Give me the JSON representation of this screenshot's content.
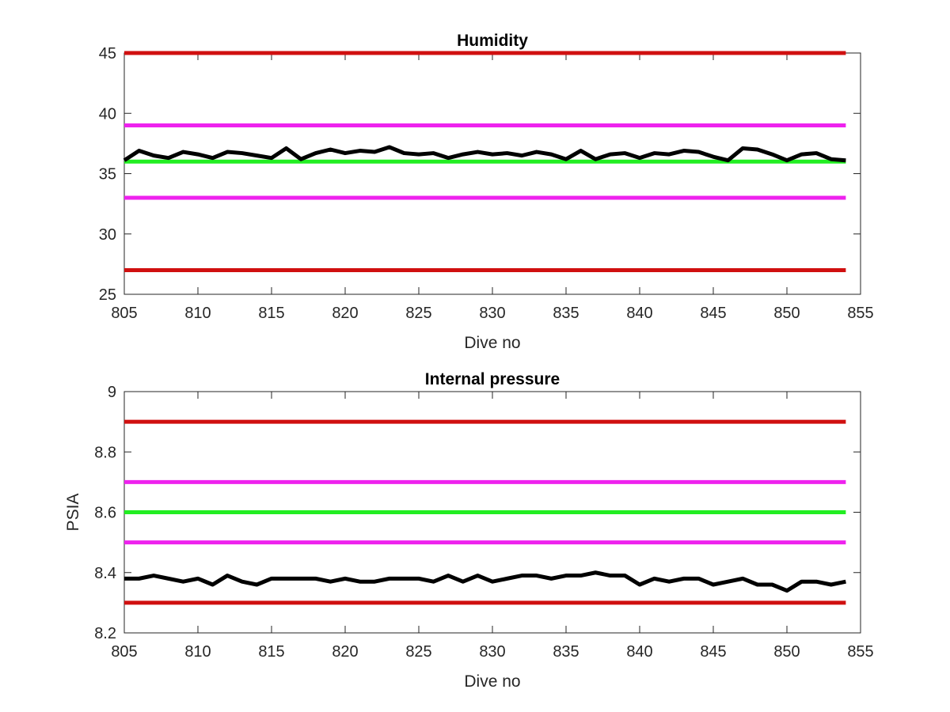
{
  "chart_data": [
    {
      "type": "line",
      "title": "Humidity",
      "xlabel": "Dive no",
      "ylabel": "",
      "xlim": [
        805,
        855
      ],
      "ylim": [
        25,
        45
      ],
      "xticks": [
        "805",
        "810",
        "815",
        "820",
        "825",
        "830",
        "835",
        "840",
        "845",
        "850",
        "855"
      ],
      "yticks": [
        "25",
        "30",
        "35",
        "40",
        "45"
      ],
      "grid": false,
      "reference_lines": [
        {
          "y": 45,
          "color": "#d01010"
        },
        {
          "y": 39,
          "color": "#ee22ee"
        },
        {
          "y": 36,
          "color": "#22ee22"
        },
        {
          "y": 33,
          "color": "#ee22ee"
        },
        {
          "y": 27,
          "color": "#d01010"
        }
      ],
      "series": [
        {
          "color": "#000000",
          "x": [
            805,
            806,
            807,
            808,
            809,
            810,
            811,
            812,
            813,
            814,
            815,
            816,
            817,
            818,
            819,
            820,
            821,
            822,
            823,
            824,
            825,
            826,
            827,
            828,
            829,
            830,
            831,
            832,
            833,
            834,
            835,
            836,
            837,
            838,
            839,
            840,
            841,
            842,
            843,
            844,
            845,
            846,
            847,
            848,
            849,
            850,
            851,
            852,
            853,
            854
          ],
          "y": [
            36.1,
            36.9,
            36.5,
            36.3,
            36.8,
            36.6,
            36.3,
            36.8,
            36.7,
            36.5,
            36.3,
            37.1,
            36.2,
            36.7,
            37.0,
            36.7,
            36.9,
            36.8,
            37.2,
            36.7,
            36.6,
            36.7,
            36.3,
            36.6,
            36.8,
            36.6,
            36.7,
            36.5,
            36.8,
            36.6,
            36.2,
            36.9,
            36.2,
            36.6,
            36.7,
            36.3,
            36.7,
            36.6,
            36.9,
            36.8,
            36.4,
            36.1,
            37.1,
            37.0,
            36.6,
            36.1,
            36.6,
            36.7,
            36.2,
            36.1
          ]
        }
      ]
    },
    {
      "type": "line",
      "title": "Internal pressure",
      "xlabel": "Dive no",
      "ylabel": "PSIA",
      "xlim": [
        805,
        855
      ],
      "ylim": [
        8.2,
        9
      ],
      "xticks": [
        "805",
        "810",
        "815",
        "820",
        "825",
        "830",
        "835",
        "840",
        "845",
        "850",
        "855"
      ],
      "yticks": [
        "8.2",
        "8.4",
        "8.6",
        "8.8",
        "9"
      ],
      "grid": false,
      "reference_lines": [
        {
          "y": 8.9,
          "color": "#d01010"
        },
        {
          "y": 8.7,
          "color": "#ee22ee"
        },
        {
          "y": 8.6,
          "color": "#22ee22"
        },
        {
          "y": 8.5,
          "color": "#ee22ee"
        },
        {
          "y": 8.3,
          "color": "#d01010"
        }
      ],
      "series": [
        {
          "color": "#000000",
          "x": [
            805,
            806,
            807,
            808,
            809,
            810,
            811,
            812,
            813,
            814,
            815,
            816,
            817,
            818,
            819,
            820,
            821,
            822,
            823,
            824,
            825,
            826,
            827,
            828,
            829,
            830,
            831,
            832,
            833,
            834,
            835,
            836,
            837,
            838,
            839,
            840,
            841,
            842,
            843,
            844,
            845,
            846,
            847,
            848,
            849,
            850,
            851,
            852,
            853,
            854
          ],
          "y": [
            8.38,
            8.38,
            8.39,
            8.38,
            8.37,
            8.38,
            8.36,
            8.39,
            8.37,
            8.36,
            8.38,
            8.38,
            8.38,
            8.38,
            8.37,
            8.38,
            8.37,
            8.37,
            8.38,
            8.38,
            8.38,
            8.37,
            8.39,
            8.37,
            8.39,
            8.37,
            8.38,
            8.39,
            8.39,
            8.38,
            8.39,
            8.39,
            8.4,
            8.39,
            8.39,
            8.36,
            8.38,
            8.37,
            8.38,
            8.38,
            8.36,
            8.37,
            8.38,
            8.36,
            8.36,
            8.34,
            8.37,
            8.37,
            8.36,
            8.37
          ]
        }
      ]
    }
  ]
}
